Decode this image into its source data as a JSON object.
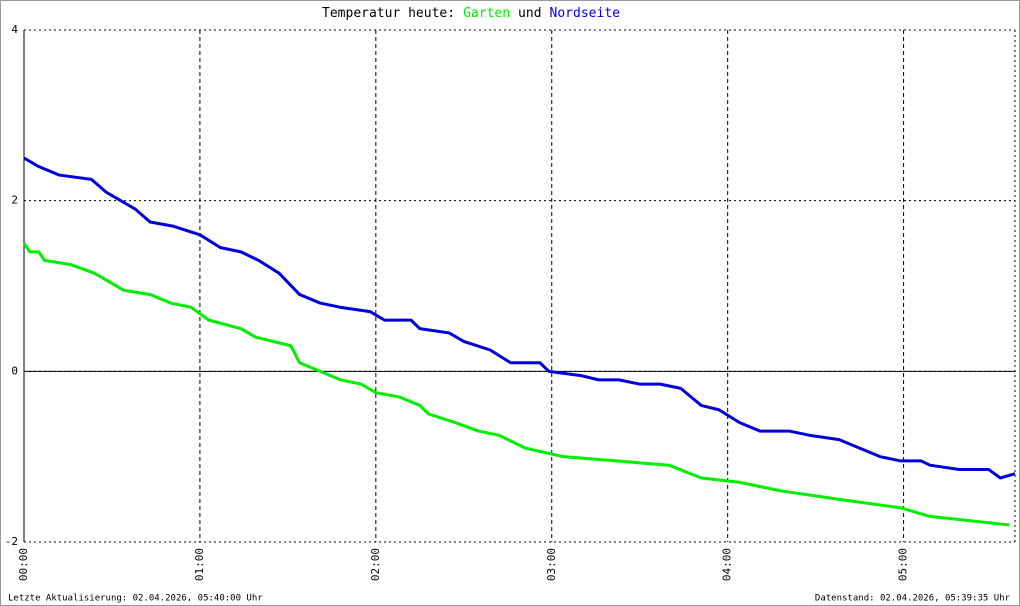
{
  "chart_data": {
    "type": "line",
    "title": "Temperatur heute:",
    "title_joiner": "und",
    "footer_left": "Letzte Aktualisierung: 02.04.2026, 05:40:00 Uhr",
    "footer_right": "Datenstand: 02.04.2026, 05:39:35 Uhr",
    "xlim": [
      0,
      338
    ],
    "xticks": [
      {
        "value": 0,
        "label": "00:00"
      },
      {
        "value": 60,
        "label": "01:00"
      },
      {
        "value": 120,
        "label": "02:00"
      },
      {
        "value": 180,
        "label": "03:00"
      },
      {
        "value": 240,
        "label": "04:00"
      },
      {
        "value": 300,
        "label": "05:00"
      }
    ],
    "ylim": [
      -2,
      4
    ],
    "yticks": [
      -2,
      0,
      2,
      4
    ],
    "grid": true,
    "series": [
      {
        "name": "Garten",
        "color": "#00ee00",
        "x": [
          0,
          2,
          5,
          7,
          16,
          24,
          29,
          34,
          43,
          50,
          57,
          63,
          74,
          79,
          91,
          94,
          101,
          108,
          115,
          120,
          128,
          135,
          138,
          147,
          155,
          162,
          171,
          184,
          220,
          231,
          244,
          258,
          278,
          299,
          309,
          336
        ],
        "values": [
          1.5,
          1.4,
          1.4,
          1.3,
          1.25,
          1.15,
          1.05,
          0.95,
          0.9,
          0.8,
          0.75,
          0.6,
          0.5,
          0.4,
          0.3,
          0.1,
          0.0,
          -0.1,
          -0.15,
          -0.25,
          -0.3,
          -0.4,
          -0.5,
          -0.6,
          -0.7,
          -0.75,
          -0.9,
          -1.0,
          -1.1,
          -1.25,
          -1.3,
          -1.4,
          -1.5,
          -1.6,
          -1.7,
          -1.8
        ]
      },
      {
        "name": "Nordseite",
        "color": "#0000dd",
        "x": [
          0,
          5,
          12,
          23,
          28,
          33,
          38,
          43,
          51,
          60,
          67,
          74,
          80,
          87,
          94,
          101,
          108,
          118,
          123,
          132,
          135,
          145,
          150,
          159,
          166,
          176,
          179,
          190,
          196,
          203,
          210,
          217,
          224,
          231,
          237,
          244,
          251,
          261,
          268,
          278,
          285,
          292,
          299,
          306,
          309,
          319,
          329,
          333,
          338
        ],
        "values": [
          2.5,
          2.4,
          2.3,
          2.25,
          2.1,
          2.0,
          1.9,
          1.75,
          1.7,
          1.6,
          1.45,
          1.4,
          1.3,
          1.15,
          0.9,
          0.8,
          0.75,
          0.7,
          0.6,
          0.6,
          0.5,
          0.45,
          0.35,
          0.25,
          0.1,
          0.1,
          0,
          -0.05,
          -0.1,
          -0.1,
          -0.15,
          -0.15,
          -0.2,
          -0.4,
          -0.45,
          -0.6,
          -0.7,
          -0.7,
          -0.75,
          -0.8,
          -0.9,
          -1.0,
          -1.05,
          -1.05,
          -1.1,
          -1.15,
          -1.15,
          -1.25,
          -1.2
        ]
      }
    ]
  }
}
